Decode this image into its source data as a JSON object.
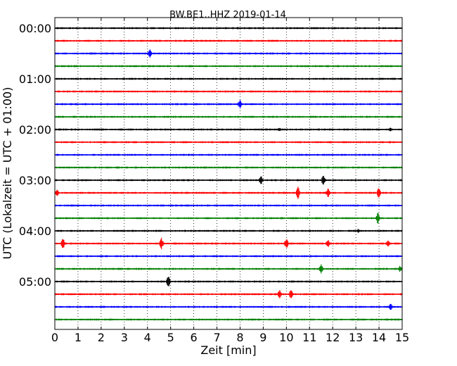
{
  "chart_data": {
    "type": "line",
    "title": "BW.BE1..HHZ 2019-01-14",
    "xlabel": "Zeit  [min]",
    "ylabel": "UTC (Lokalzeit = UTC + 01:00)",
    "xlim": [
      0,
      15
    ],
    "x_ticks": [
      "0",
      "1",
      "2",
      "3",
      "4",
      "5",
      "6",
      "7",
      "8",
      "9",
      "10",
      "11",
      "12",
      "13",
      "14",
      "15"
    ],
    "y_ticks": [
      "00:00",
      "01:00",
      "02:00",
      "03:00",
      "04:00",
      "05:00"
    ],
    "grid": "vertical dotted",
    "trace_colors": [
      "#000000",
      "#ff0000",
      "#0000ff",
      "#008000"
    ],
    "series": [
      {
        "start": "00:00",
        "events": [
          {
            "t": 7.9,
            "amp": 0.1
          }
        ]
      },
      {
        "start": "00:15",
        "events": [
          {
            "t": 12.5,
            "amp": 0.1
          }
        ]
      },
      {
        "start": "00:30",
        "events": [
          {
            "t": 4.1,
            "amp": 0.4
          }
        ]
      },
      {
        "start": "00:45",
        "events": []
      },
      {
        "start": "01:00",
        "events": [
          {
            "t": 13.3,
            "amp": 0.1
          }
        ]
      },
      {
        "start": "01:15",
        "events": []
      },
      {
        "start": "01:30",
        "events": [
          {
            "t": 8.0,
            "amp": 0.4
          }
        ]
      },
      {
        "start": "01:45",
        "events": []
      },
      {
        "start": "02:00",
        "events": [
          {
            "t": 9.7,
            "amp": 0.2
          },
          {
            "t": 14.5,
            "amp": 0.2
          }
        ]
      },
      {
        "start": "02:15",
        "events": [
          {
            "t": 3.1,
            "amp": 0.1
          }
        ]
      },
      {
        "start": "02:30",
        "events": [
          {
            "t": 5.8,
            "amp": 0.1
          }
        ]
      },
      {
        "start": "02:45",
        "events": [
          {
            "t": 2.7,
            "amp": 0.1
          }
        ]
      },
      {
        "start": "03:00",
        "events": [
          {
            "t": 8.9,
            "amp": 0.45
          },
          {
            "t": 11.6,
            "amp": 0.45
          }
        ]
      },
      {
        "start": "03:15",
        "events": [
          {
            "t": 0.1,
            "amp": 0.4
          },
          {
            "t": 10.5,
            "amp": 0.6
          },
          {
            "t": 11.8,
            "amp": 0.4
          },
          {
            "t": 14.0,
            "amp": 0.5
          }
        ]
      },
      {
        "start": "03:30",
        "events": []
      },
      {
        "start": "03:45",
        "events": [
          {
            "t": 13.95,
            "amp": 0.5
          }
        ]
      },
      {
        "start": "04:00",
        "events": [
          {
            "t": 13.1,
            "amp": 0.2
          }
        ]
      },
      {
        "start": "04:15",
        "events": [
          {
            "t": 0.35,
            "amp": 0.5
          },
          {
            "t": 4.6,
            "amp": 0.5
          },
          {
            "t": 10.0,
            "amp": 0.5
          },
          {
            "t": 11.8,
            "amp": 0.4
          },
          {
            "t": 14.4,
            "amp": 0.3
          }
        ]
      },
      {
        "start": "04:30",
        "events": [
          {
            "t": 14.8,
            "amp": 0.1
          }
        ]
      },
      {
        "start": "04:45",
        "events": [
          {
            "t": 11.5,
            "amp": 0.4
          },
          {
            "t": 14.9,
            "amp": 0.3
          }
        ]
      },
      {
        "start": "05:00",
        "events": [
          {
            "t": 4.9,
            "amp": 0.5
          }
        ]
      },
      {
        "start": "05:15",
        "events": [
          {
            "t": 9.7,
            "amp": 0.4
          },
          {
            "t": 10.2,
            "amp": 0.4
          }
        ]
      },
      {
        "start": "05:30",
        "events": [
          {
            "t": 14.5,
            "amp": 0.3
          }
        ]
      },
      {
        "start": "05:45",
        "events": []
      }
    ]
  }
}
